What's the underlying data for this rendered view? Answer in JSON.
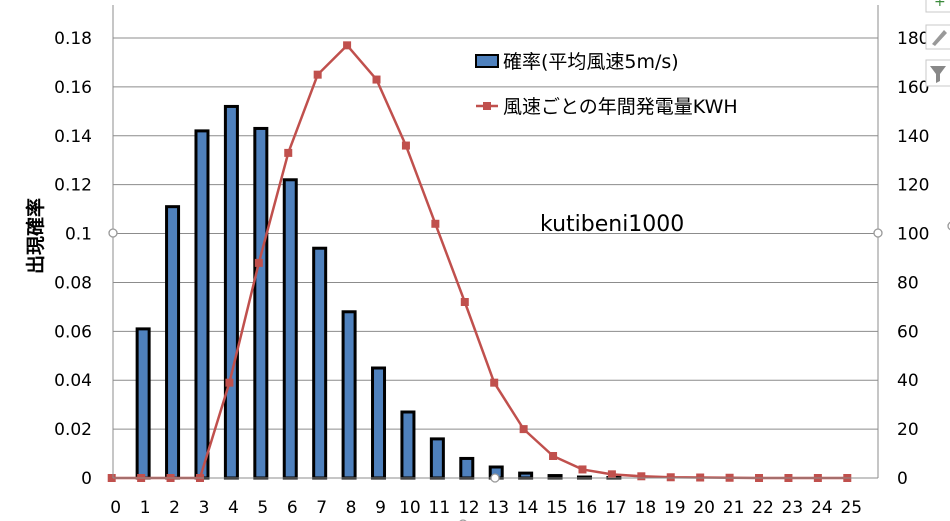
{
  "chart_data": {
    "type": "bar",
    "categories": [
      "0",
      "1",
      "2",
      "3",
      "4",
      "5",
      "6",
      "7",
      "8",
      "9",
      "10",
      "11",
      "12",
      "13",
      "14",
      "15",
      "16",
      "17",
      "18",
      "19",
      "20",
      "21",
      "22",
      "23",
      "24",
      "25"
    ],
    "series": [
      {
        "name": "確率(平均風速5m/s)",
        "type": "bar",
        "axis": "left",
        "color": "#4F81BD",
        "values": [
          0,
          0.061,
          0.111,
          0.142,
          0.152,
          0.143,
          0.122,
          0.094,
          0.068,
          0.045,
          0.027,
          0.016,
          0.008,
          0.0045,
          0.002,
          0.001,
          0.0004,
          0.0002,
          0,
          0,
          0,
          0,
          0,
          0,
          0,
          0
        ]
      },
      {
        "name": "風速ごとの年間発電量KWH",
        "type": "line",
        "axis": "right",
        "color": "#C0504D",
        "values": [
          0,
          0,
          0,
          0,
          39,
          88,
          133,
          165,
          177,
          163,
          136,
          104,
          72,
          39,
          20,
          9,
          3.5,
          1.5,
          0.7,
          0.3,
          0.2,
          0.1,
          0,
          0,
          0,
          0
        ]
      }
    ],
    "ylabel": "出現確率",
    "ylim": [
      0,
      0.18
    ],
    "yticks": [
      "0",
      "0.02",
      "0.04",
      "0.06",
      "0.08",
      "0.1",
      "0.12",
      "0.14",
      "0.16",
      "0.18"
    ],
    "y2lim": [
      0,
      180
    ],
    "y2ticks": [
      "0",
      "20",
      "40",
      "60",
      "80",
      "100",
      "120",
      "140",
      "160",
      "180"
    ],
    "annotation": "kutibeni1000",
    "legend_position": "top-right",
    "grid": true
  }
}
